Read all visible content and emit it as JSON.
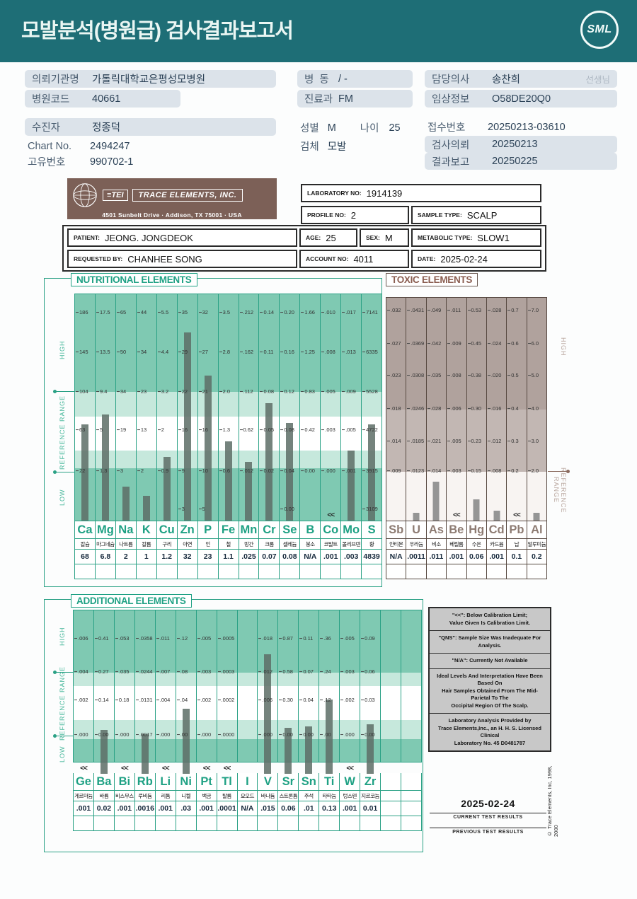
{
  "header": {
    "title": "모발분석(병원급) 검사결과보고서",
    "logo": "SML"
  },
  "info": {
    "left": [
      {
        "label": "의뢰기관명",
        "value": "가톨릭대학교은평성모병원"
      },
      {
        "label": "병원코드",
        "value": "40661"
      },
      {
        "label": "수진자",
        "value": "정종덕"
      },
      {
        "label": "Chart No.",
        "value": "2494247"
      },
      {
        "label": "고유번호",
        "value": "990702-1"
      }
    ],
    "middle": [
      {
        "label": "병  동",
        "value": "/ -"
      },
      {
        "label": "진료과",
        "value": "FM"
      },
      {
        "label": "성별",
        "value": "M",
        "label2": "나이",
        "value2": "25"
      },
      {
        "label": "검체",
        "value": "모발"
      }
    ],
    "right": [
      {
        "label": "담당의사",
        "value": "송찬희",
        "suffix": "선생님"
      },
      {
        "label": "임상정보",
        "value": "O58DE20Q0"
      },
      {
        "label": "접수번호",
        "value": "20250213-03610"
      },
      {
        "label": "검사의뢰",
        "value": "20250213"
      },
      {
        "label": "결과보고",
        "value": "20250225"
      }
    ]
  },
  "lab_header": {
    "logo_mini": "≡TEI",
    "company": "TRACE ELEMENTS, INC.",
    "address": "4501 Sunbelt Drive  ·  Addison, TX 75001  ·  USA",
    "laboratory_no_label": "LABORATORY NO:",
    "laboratory_no": "1914139",
    "profile_no_label": "PROFILE NO:",
    "profile_no": "2",
    "sample_type_label": "SAMPLE TYPE:",
    "sample_type": "SCALP",
    "patient_label": "PATIENT:",
    "patient": "JEONG. JONGDEOK",
    "age_label": "AGE:",
    "age": "25",
    "sex_label": "SEX:",
    "sex": "M",
    "metabolic_label": "METABOLIC TYPE:",
    "metabolic": "SLOW1",
    "requested_label": "REQUESTED BY:",
    "requested": "CHANHEE SONG",
    "account_label": "ACCOUNT NO:",
    "account": "4011",
    "date_label": "DATE:",
    "date": "2025-02-24"
  },
  "labels": {
    "high": "HIGH",
    "reference": "REFERENCE RANGE",
    "low": "LOW"
  },
  "chart_data": [
    {
      "type": "bar",
      "title": "NUTRITIONAL ELEMENTS",
      "legend_position": "none",
      "elements": [
        {
          "symbol": "Ca",
          "korean": "칼슘",
          "value": "68",
          "scale": [
            "186",
            "145",
            "104",
            "63",
            "22",
            ""
          ],
          "bar_frac": 0.425,
          "marker": ""
        },
        {
          "symbol": "Mg",
          "korean": "마그네슘",
          "value": "6.8",
          "scale": [
            "17.5",
            "13.5",
            "9.4",
            "5",
            "1.3",
            ""
          ],
          "bar_frac": 0.47,
          "marker": ""
        },
        {
          "symbol": "Na",
          "korean": "나트륨",
          "value": "2",
          "scale": [
            "65",
            "50",
            "34",
            "19",
            "3",
            ""
          ],
          "bar_frac": 0.15,
          "marker": ""
        },
        {
          "symbol": "K",
          "korean": "칼륨",
          "value": "1",
          "scale": [
            "44",
            "34",
            "23",
            "13",
            "2",
            ""
          ],
          "bar_frac": 0.11,
          "marker": ""
        },
        {
          "symbol": "Cu",
          "korean": "구리",
          "value": "1.2",
          "scale": [
            "5.5",
            "4.4",
            "3.2",
            "2",
            "0.9",
            ""
          ],
          "bar_frac": 0.28,
          "marker": ""
        },
        {
          "symbol": "Zn",
          "korean": "아연",
          "value": "32",
          "scale": [
            "35",
            "29",
            "22",
            "16",
            "9",
            "3"
          ],
          "bar_frac": 0.83,
          "marker": ""
        },
        {
          "symbol": "P",
          "korean": "인",
          "value": "23",
          "scale": [
            "32",
            "27",
            "21",
            "16",
            "10",
            "5"
          ],
          "bar_frac": 0.64,
          "marker": ""
        },
        {
          "symbol": "Fe",
          "korean": "철",
          "value": "1.1",
          "scale": [
            "3.5",
            "2.8",
            "2.0",
            "1.3",
            "0.6",
            ""
          ],
          "bar_frac": 0.35,
          "marker": ""
        },
        {
          "symbol": "Mn",
          "korean": "망간",
          "value": ".025",
          "scale": [
            ".212",
            ".162",
            ".112",
            "0.62",
            ".012",
            ""
          ],
          "bar_frac": 0.26,
          "marker": ""
        },
        {
          "symbol": "Cr",
          "korean": "크롬",
          "value": "0.07",
          "scale": [
            "0.14",
            "0.11",
            "0.08",
            "0.05",
            "0.02",
            ""
          ],
          "bar_frac": 0.52,
          "marker": ""
        },
        {
          "symbol": "Se",
          "korean": "셀레늄",
          "value": "0.08",
          "scale": [
            "0.20",
            "0.16",
            "0.12",
            "0.08",
            "0.04",
            "0.00"
          ],
          "bar_frac": 0.43,
          "marker": ""
        },
        {
          "symbol": "B",
          "korean": "붕소",
          "value": "N/A",
          "scale": [
            "1.66",
            "1.25",
            "0.83",
            "0.42",
            "0.00",
            ""
          ],
          "bar_frac": 0,
          "marker": ""
        },
        {
          "symbol": "Co",
          "korean": "코발트",
          "value": ".001",
          "scale": [
            ".010",
            ".008",
            ".005",
            ".003",
            ".000",
            ""
          ],
          "bar_frac": 0,
          "marker": "<<"
        },
        {
          "symbol": "Mo",
          "korean": "몰리브덴",
          "value": ".003",
          "scale": [
            ".017",
            ".013",
            ".009",
            ".005",
            ".001",
            ""
          ],
          "bar_frac": 0.31,
          "marker": ""
        },
        {
          "symbol": "S",
          "korean": "황",
          "value": "4839",
          "scale": [
            "7141",
            "6335",
            "5528",
            "4722",
            "3915",
            "3109"
          ],
          "bar_frac": 0.425,
          "marker": ""
        }
      ]
    },
    {
      "type": "bar",
      "title": "TOXIC ELEMENTS",
      "legend_position": "none",
      "elements": [
        {
          "symbol": "Sb",
          "korean": "안티몬",
          "value": "N/A",
          "scale": [
            ".032",
            ".027",
            ".023",
            ".018",
            ".014",
            ".009"
          ],
          "bar_frac": 0,
          "marker": ""
        },
        {
          "symbol": "U",
          "korean": "우라늄",
          "value": ".0011",
          "scale": [
            ".0431",
            ".0369",
            ".0308",
            ".0246",
            ".0185",
            ".0123"
          ],
          "bar_frac": 0.035,
          "marker": ""
        },
        {
          "symbol": "As",
          "korean": "비소",
          "value": ".011",
          "scale": [
            ".049",
            ".042",
            ".035",
            ".028",
            ".021",
            ".014"
          ],
          "bar_frac": 0.175,
          "marker": ""
        },
        {
          "symbol": "Be",
          "korean": "베릴륨",
          "value": ".001",
          "scale": [
            ".011",
            ".009",
            ".008",
            ".006",
            ".005",
            ".003"
          ],
          "bar_frac": 0,
          "marker": "<<"
        },
        {
          "symbol": "Hg",
          "korean": "수은",
          "value": "0.06",
          "scale": [
            "0.53",
            "0.45",
            "0.38",
            "0.30",
            "0.23",
            "0.15"
          ],
          "bar_frac": 0.095,
          "marker": ""
        },
        {
          "symbol": "Cd",
          "korean": "카드뮴",
          "value": ".001",
          "scale": [
            ".028",
            ".024",
            ".020",
            ".016",
            ".012",
            ".008"
          ],
          "bar_frac": 0.045,
          "marker": ""
        },
        {
          "symbol": "Pb",
          "korean": "납",
          "value": "0.1",
          "scale": [
            "0.7",
            "0.6",
            "0.5",
            "0.4",
            "0.3",
            "0.2"
          ],
          "bar_frac": 0,
          "marker": "<<"
        },
        {
          "symbol": "Al",
          "korean": "알루미늄",
          "value": "0.2",
          "scale": [
            "7.0",
            "6.0",
            "5.0",
            "4.0",
            "3.0",
            "2.0"
          ],
          "bar_frac": 0.035,
          "marker": ""
        }
      ]
    },
    {
      "type": "bar",
      "title": "ADDITIONAL ELEMENTS",
      "legend_position": "none",
      "elements": [
        {
          "symbol": "Ge",
          "korean": "게르마늄",
          "value": ".001",
          "scale": [
            ".006",
            ".004",
            ".002",
            ".000"
          ],
          "bar_frac": 0,
          "marker": "<<"
        },
        {
          "symbol": "Ba",
          "korean": "바륨",
          "value": "0.02",
          "scale": [
            "0.41",
            "0.27",
            "0.14",
            "0.00"
          ],
          "bar_frac": 0.21,
          "marker": ""
        },
        {
          "symbol": "Bi",
          "korean": "비스무스",
          "value": ".001",
          "scale": [
            ".053",
            ".035",
            "0.18",
            ".000"
          ],
          "bar_frac": 0,
          "marker": "<<"
        },
        {
          "symbol": "Rb",
          "korean": "루비듐",
          "value": ".0016",
          "scale": [
            ".0358",
            ".0244",
            ".0131",
            ".0017"
          ],
          "bar_frac": 0.18,
          "marker": ""
        },
        {
          "symbol": "Li",
          "korean": "리튬",
          "value": ".001",
          "scale": [
            ".011",
            ".007",
            ".004",
            ".000"
          ],
          "bar_frac": 0,
          "marker": "<<"
        },
        {
          "symbol": "Ni",
          "korean": "니켈",
          "value": ".03",
          "scale": [
            ".12",
            ".08",
            ".04",
            ".00"
          ],
          "bar_frac": 0.35,
          "marker": ""
        },
        {
          "symbol": "Pt",
          "korean": "백금",
          "value": ".001",
          "scale": [
            ".005",
            ".003",
            ".002",
            ".000"
          ],
          "bar_frac": 0,
          "marker": "<<"
        },
        {
          "symbol": "Tl",
          "korean": "탈륨",
          "value": ".0001",
          "scale": [
            ".0005",
            ".0003",
            ".0002",
            ".0000"
          ],
          "bar_frac": 0,
          "marker": "<<"
        },
        {
          "symbol": "I",
          "korean": "요오드",
          "value": "N/A",
          "scale": [
            "",
            "",
            "",
            ""
          ],
          "bar_frac": 0,
          "marker": ""
        },
        {
          "symbol": "V",
          "korean": "바나듐",
          "value": ".015",
          "scale": [
            ".018",
            ".012",
            ".006",
            ".000"
          ],
          "bar_frac": 0.71,
          "marker": ""
        },
        {
          "symbol": "Sr",
          "korean": "스트론튬",
          "value": "0.06",
          "scale": [
            "0.87",
            "0.58",
            "0.30",
            "0.00"
          ],
          "bar_frac": 0.225,
          "marker": ""
        },
        {
          "symbol": "Sn",
          "korean": "주석",
          "value": ".01",
          "scale": [
            "0.11",
            "0.07",
            "0.04",
            "0.00"
          ],
          "bar_frac": 0.235,
          "marker": ""
        },
        {
          "symbol": "Ti",
          "korean": "타타늄",
          "value": "0.13",
          "scale": [
            ".36",
            ".24",
            ".12",
            ".00"
          ],
          "bar_frac": 0.41,
          "marker": ""
        },
        {
          "symbol": "W",
          "korean": "텅스텐",
          "value": ".001",
          "scale": [
            ".005",
            ".003",
            ".002",
            ".000"
          ],
          "bar_frac": 0,
          "marker": "<<"
        },
        {
          "symbol": "Zr",
          "korean": "지르코늄",
          "value": "0.01",
          "scale": [
            "0.09",
            "0.06",
            "0.03",
            "0.00"
          ],
          "bar_frac": 0.25,
          "marker": ""
        },
        {
          "symbol": "",
          "korean": "",
          "value": "",
          "scale": [
            "",
            "",
            "",
            ""
          ],
          "bar_frac": 0,
          "marker": ""
        },
        {
          "symbol": "",
          "korean": "",
          "value": "",
          "scale": [
            "",
            "",
            "",
            ""
          ],
          "bar_frac": 0,
          "marker": ""
        }
      ]
    }
  ],
  "notes": [
    "\"<<\": Below Calibration Limit;\nValue Given Is Calibration Limit.",
    "\"QNS\": Sample Size Was Inadequate For Analysis.",
    "\"N/A\": Currently Not Available",
    "Ideal Levels And Interpretation Have Been Based On\nHair Samples Obtained From The Mid-Parietal To The\nOccipital Region Of The Scalp.",
    "Laboratory Analysis Provided by\nTrace Elements,Inc., an H. H. S. Licensed Clinical\nLaboratory No. 45 D0481787"
  ],
  "footer": {
    "date": "2025-02-24",
    "current": "CURRENT TEST RESULTS",
    "previous": "PREVIOUS TEST RESULTS",
    "copyright": "© Trace Elements, Inc, 1998, 2000"
  }
}
